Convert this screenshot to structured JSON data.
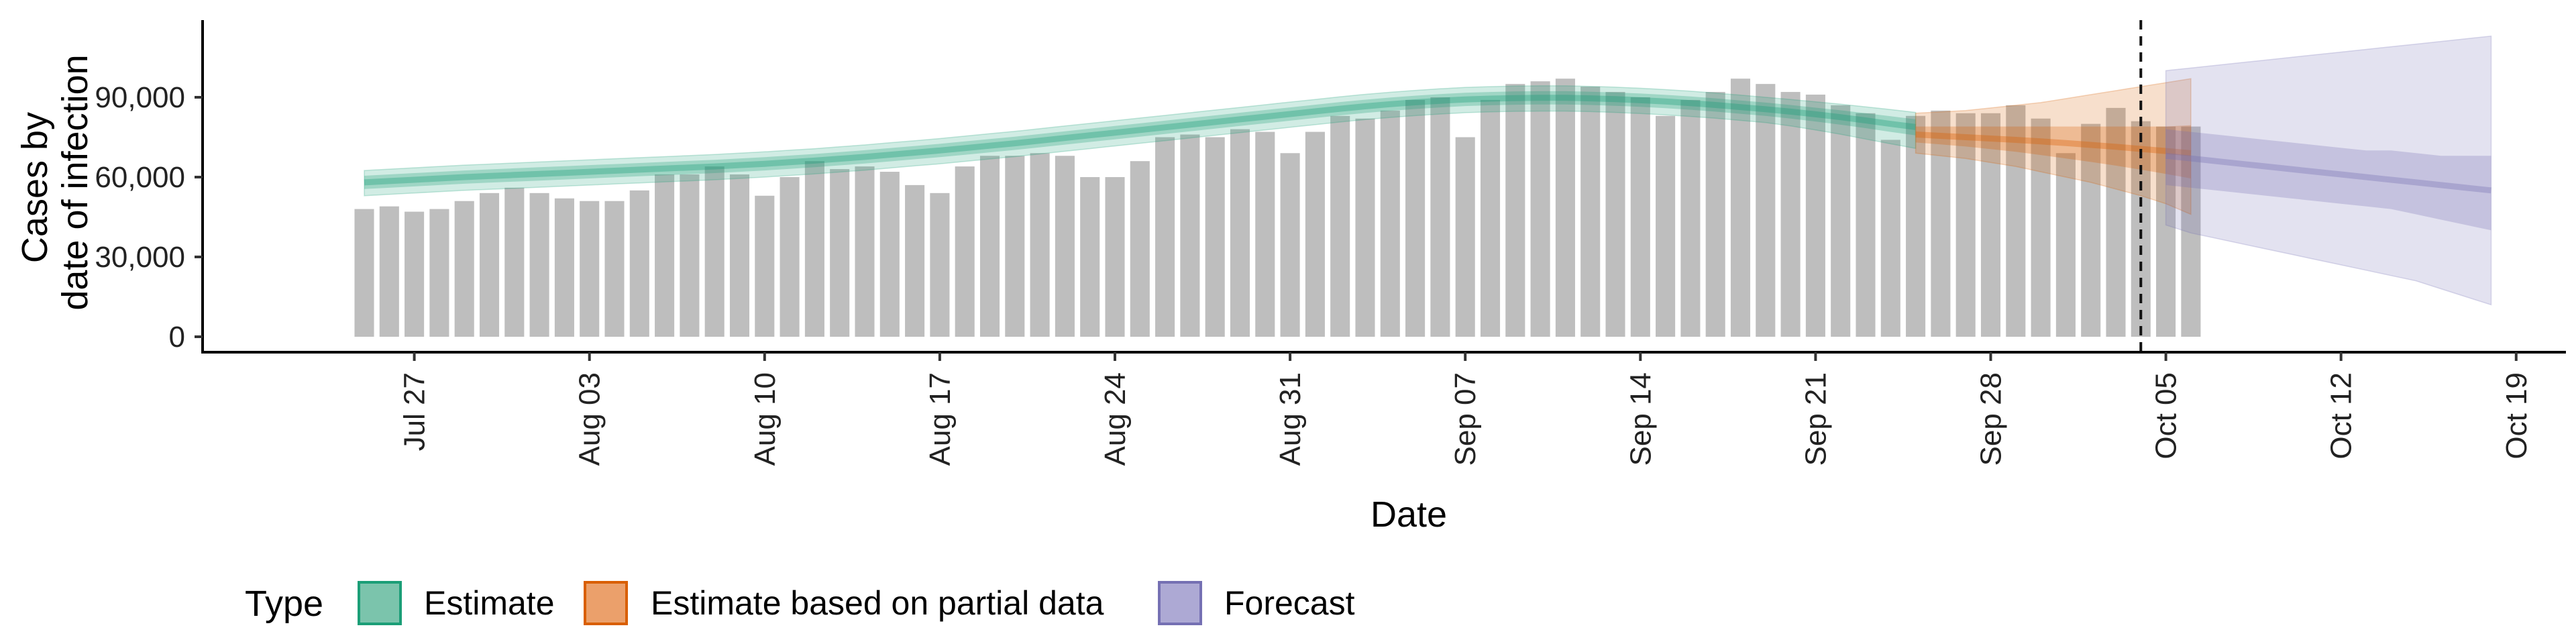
{
  "chart_data": {
    "type": "bar",
    "x_start": "2021-07-25",
    "y_axis_title_lines": [
      "Cases by",
      "date of infection"
    ],
    "xlabel": "Date",
    "ylim": [
      0,
      120000
    ],
    "yticks": [
      0,
      30000,
      60000,
      90000
    ],
    "ytick_labels": [
      "0",
      "30,000",
      "60,000",
      "90,000"
    ],
    "xticks": [
      "2021-07-27",
      "2021-08-03",
      "2021-08-10",
      "2021-08-17",
      "2021-08-24",
      "2021-08-31",
      "2021-09-07",
      "2021-09-14",
      "2021-09-21",
      "2021-09-28",
      "2021-10-05",
      "2021-10-12",
      "2021-10-19"
    ],
    "xtick_labels": [
      "Jul 27",
      "Aug 03",
      "Aug 10",
      "Aug 17",
      "Aug 24",
      "Aug 31",
      "Sep 07",
      "Sep 14",
      "Sep 21",
      "Sep 28",
      "Oct 05",
      "Oct 12",
      "Oct 19"
    ],
    "forecast_line_date": "2021-10-04",
    "reported_cases": [
      48000,
      49000,
      47000,
      48000,
      51000,
      54000,
      56000,
      54000,
      52000,
      51000,
      51000,
      55000,
      61000,
      61000,
      64000,
      61000,
      53000,
      60000,
      66000,
      63000,
      64000,
      62000,
      57000,
      54000,
      64000,
      68000,
      68000,
      69000,
      68000,
      60000,
      60000,
      66000,
      75000,
      76000,
      75000,
      78000,
      77000,
      69000,
      77000,
      83000,
      82000,
      85000,
      89000,
      90000,
      75000,
      89000,
      95000,
      96000,
      97000,
      94000,
      92000,
      90000,
      83000,
      89000,
      92000,
      97000,
      95000,
      92000,
      91000,
      87000,
      84000,
      74000,
      83000,
      85000,
      84000,
      84000,
      87000,
      82000,
      69000,
      80000,
      86000,
      81000,
      79000,
      79000
    ],
    "series": [
      {
        "name": "Estimate",
        "color": "#1B9E77",
        "start": "2021-07-25",
        "median": [
          58000,
          58500,
          59000,
          59500,
          60000,
          60400,
          60800,
          61200,
          61600,
          62000,
          62400,
          62800,
          63200,
          63600,
          64000,
          64500,
          65000,
          65600,
          66200,
          66900,
          67600,
          68400,
          69200,
          70000,
          70900,
          71800,
          72700,
          73700,
          74700,
          75700,
          76700,
          77700,
          78700,
          79700,
          80700,
          81700,
          82700,
          83700,
          84700,
          85700,
          86600,
          87400,
          88100,
          88700,
          89200,
          89500,
          89700,
          89800,
          89800,
          89600,
          89300,
          88900,
          88400,
          87800,
          87100,
          86300,
          85500,
          84600,
          83600,
          82500,
          81300,
          80000,
          78800
        ],
        "lower90": [
          53000,
          53500,
          54000,
          54500,
          55000,
          55400,
          55800,
          56200,
          56600,
          57000,
          57400,
          57800,
          58200,
          58600,
          59000,
          59500,
          60000,
          60600,
          61200,
          61900,
          62600,
          63400,
          64200,
          65000,
          65900,
          66800,
          67700,
          68700,
          69700,
          70700,
          71700,
          72700,
          73700,
          74700,
          75700,
          76700,
          77700,
          78700,
          79700,
          80700,
          81600,
          82400,
          83100,
          83700,
          84200,
          84500,
          84700,
          84800,
          84800,
          84600,
          84300,
          83900,
          83400,
          82800,
          82100,
          81300,
          80500,
          79200,
          77700,
          76100,
          74300,
          72500,
          70800
        ],
        "upper90": [
          62500,
          63000,
          63500,
          64000,
          64500,
          64900,
          65300,
          65700,
          66100,
          66500,
          66900,
          67300,
          67700,
          68100,
          68500,
          69000,
          69500,
          70100,
          70700,
          71400,
          72100,
          72900,
          73700,
          74500,
          75400,
          76300,
          77200,
          78200,
          79200,
          80200,
          81200,
          82200,
          83200,
          84200,
          85200,
          86200,
          87200,
          88200,
          89200,
          90200,
          91100,
          91900,
          92600,
          93200,
          93700,
          94000,
          94200,
          94300,
          94300,
          94100,
          93800,
          93400,
          92900,
          92300,
          91600,
          90800,
          90000,
          89200,
          88300,
          87400,
          86400,
          85400,
          84300
        ],
        "lower50": [
          55500,
          56000,
          56500,
          57000,
          57500,
          57900,
          58300,
          58700,
          59100,
          59500,
          59900,
          60300,
          60700,
          61100,
          61500,
          62000,
          62500,
          63100,
          63700,
          64400,
          65100,
          65900,
          66700,
          67500,
          68400,
          69300,
          70200,
          71200,
          72200,
          73200,
          74200,
          75200,
          76200,
          77200,
          78200,
          79200,
          80200,
          81200,
          82200,
          83200,
          84100,
          84900,
          85600,
          86200,
          86700,
          87000,
          87200,
          87300,
          87300,
          87100,
          86800,
          86400,
          85900,
          85300,
          84600,
          83800,
          83000,
          82000,
          80900,
          79700,
          78400,
          77000,
          75700
        ],
        "upper50": [
          60500,
          61000,
          61500,
          62000,
          62500,
          62900,
          63300,
          63700,
          64100,
          64500,
          64900,
          65300,
          65700,
          66100,
          66500,
          67000,
          67500,
          68100,
          68700,
          69400,
          70100,
          70900,
          71700,
          72500,
          73400,
          74300,
          75200,
          76200,
          77200,
          78200,
          79200,
          80200,
          81200,
          82200,
          83200,
          84200,
          85200,
          86200,
          87200,
          88200,
          89100,
          89900,
          90600,
          91200,
          91700,
          92000,
          92200,
          92300,
          92300,
          92100,
          91800,
          91400,
          90900,
          90300,
          89600,
          88800,
          88000,
          87100,
          86100,
          85100,
          84000,
          82900,
          81700
        ]
      },
      {
        "name": "Estimate based on partial data",
        "color": "#D95F02",
        "start": "2021-09-25",
        "median": [
          76000,
          75500,
          75000,
          74500,
          74000,
          73400,
          72800,
          72100,
          71400,
          70600,
          69800,
          69000
        ],
        "lower90": [
          69000,
          68000,
          67000,
          65500,
          64000,
          62000,
          60000,
          58000,
          55500,
          53000,
          50000,
          46000
        ],
        "upper90": [
          84000,
          84500,
          85000,
          86000,
          87000,
          88000,
          89500,
          91000,
          92500,
          94000,
          95500,
          97000
        ],
        "lower50": [
          73000,
          72300,
          71500,
          70500,
          69500,
          68300,
          67000,
          65700,
          64300,
          62800,
          61200,
          59500
        ],
        "upper50": [
          79000,
          79000,
          79000,
          79000,
          79000,
          79000,
          79000,
          79000,
          79000,
          79000,
          79000,
          79500
        ]
      },
      {
        "name": "Forecast",
        "color": "#7570B3",
        "start": "2021-10-05",
        "median": [
          68000,
          67000,
          66000,
          65000,
          64000,
          63000,
          62000,
          61000,
          60000,
          59000,
          58000,
          57000,
          56000,
          55000
        ],
        "lower90": [
          42000,
          39000,
          37000,
          35000,
          33000,
          31000,
          29000,
          27000,
          25000,
          23000,
          21000,
          18000,
          15000,
          12000
        ],
        "upper90": [
          100000,
          101000,
          102000,
          103000,
          104000,
          105000,
          106000,
          107000,
          108000,
          109000,
          110000,
          111000,
          112000,
          113000
        ],
        "lower50": [
          57000,
          56000,
          55000,
          54000,
          53000,
          52000,
          51000,
          50000,
          49000,
          48000,
          46000,
          44000,
          42000,
          40000
        ],
        "upper50": [
          78000,
          77000,
          76000,
          75000,
          74000,
          73000,
          72000,
          71000,
          70000,
          70000,
          69000,
          68000,
          68000,
          68000
        ]
      }
    ],
    "legend": {
      "title": "Type",
      "position": "bottom-left",
      "items": [
        {
          "label": "Estimate",
          "fill": "#7BC4AC",
          "border": "#1B9E77"
        },
        {
          "label": "Estimate based on partial data",
          "fill": "#EBA06B",
          "border": "#D95F02"
        },
        {
          "label": "Forecast",
          "fill": "#ADA9D4",
          "border": "#7570B3"
        }
      ]
    },
    "grid": false
  }
}
